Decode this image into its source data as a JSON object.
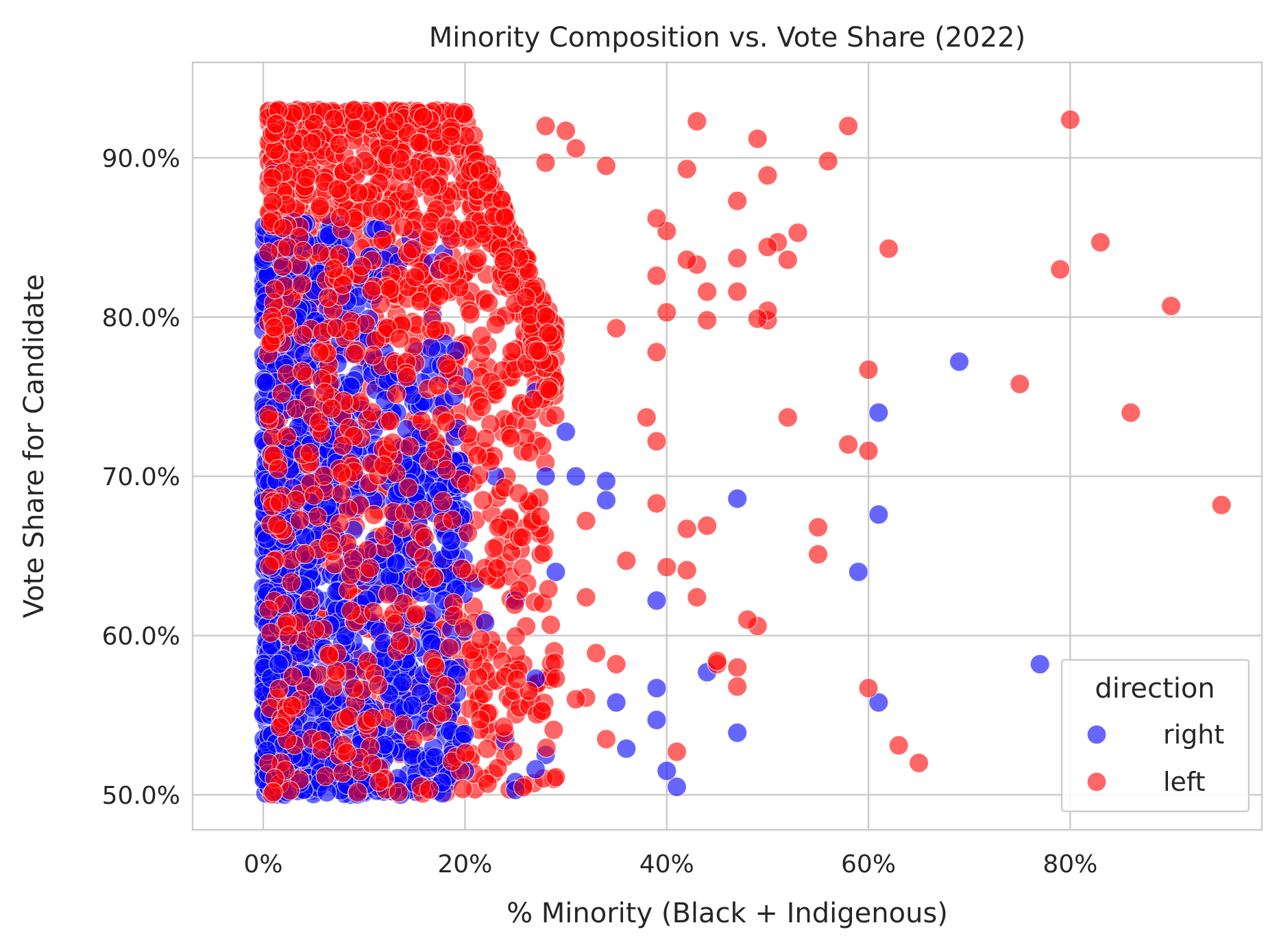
{
  "chart_data": {
    "type": "scatter",
    "title": "Minority Composition vs. Vote Share (2022)",
    "xlabel": "% Minority (Black + Indigenous)",
    "ylabel": "Vote Share for Candidate",
    "xlim": [
      -0.07,
      0.99
    ],
    "ylim": [
      0.478,
      0.96
    ],
    "x_ticks": [
      0,
      0.2,
      0.4,
      0.6,
      0.8
    ],
    "x_tick_labels": [
      "0%",
      "20%",
      "40%",
      "60%",
      "80%"
    ],
    "y_ticks": [
      0.5,
      0.6,
      0.7,
      0.8,
      0.9
    ],
    "y_tick_labels": [
      "50.0%",
      "60.0%",
      "70.0%",
      "80.0%",
      "90.0%"
    ],
    "grid": true,
    "legend": {
      "title": "direction",
      "placement": "bottom-right"
    },
    "series": [
      {
        "name": "right",
        "color": "#0000ff",
        "alpha": 0.6,
        "points": [
          [
            0.69,
            0.772
          ],
          [
            0.61,
            0.74
          ],
          [
            0.47,
            0.686
          ],
          [
            0.61,
            0.676
          ],
          [
            0.59,
            0.64
          ],
          [
            0.77,
            0.582
          ],
          [
            0.61,
            0.558
          ],
          [
            0.47,
            0.539
          ],
          [
            0.39,
            0.622
          ],
          [
            0.39,
            0.567
          ],
          [
            0.39,
            0.547
          ],
          [
            0.44,
            0.577
          ],
          [
            0.41,
            0.505
          ],
          [
            0.4,
            0.515
          ],
          [
            0.36,
            0.529
          ],
          [
            0.35,
            0.558
          ],
          [
            0.34,
            0.697
          ],
          [
            0.34,
            0.685
          ],
          [
            0.31,
            0.7
          ],
          [
            0.3,
            0.728
          ],
          [
            0.29,
            0.64
          ],
          [
            0.28,
            0.7
          ],
          [
            0.27,
            0.753
          ],
          [
            0.27,
            0.573
          ],
          [
            0.28,
            0.525
          ],
          [
            0.27,
            0.516
          ],
          [
            0.25,
            0.508
          ],
          [
            0.25,
            0.503
          ],
          [
            0.24,
            0.534
          ],
          [
            0.25,
            0.622
          ],
          [
            0.23,
            0.7
          ],
          [
            0.22,
            0.608
          ],
          [
            0.21,
            0.633
          ],
          [
            0.2,
            0.515
          ],
          [
            0.01,
            0.891
          ],
          [
            0.01,
            0.849
          ],
          [
            0.0,
            0.836
          ],
          [
            0.02,
            0.822
          ],
          [
            0.03,
            0.843
          ],
          [
            0.01,
            0.803
          ]
        ],
        "cloud": {
          "x_range": [
            0.0,
            0.2
          ],
          "y_range": [
            0.5,
            0.86
          ],
          "count": 1300,
          "density_bias": "left-low"
        }
      },
      {
        "name": "left",
        "color": "#ff0000",
        "alpha": 0.6,
        "points": [
          [
            0.95,
            0.682
          ],
          [
            0.9,
            0.807
          ],
          [
            0.86,
            0.74
          ],
          [
            0.83,
            0.847
          ],
          [
            0.8,
            0.924
          ],
          [
            0.79,
            0.83
          ],
          [
            0.75,
            0.758
          ],
          [
            0.62,
            0.843
          ],
          [
            0.6,
            0.767
          ],
          [
            0.6,
            0.716
          ],
          [
            0.58,
            0.72
          ],
          [
            0.58,
            0.92
          ],
          [
            0.56,
            0.898
          ],
          [
            0.55,
            0.668
          ],
          [
            0.55,
            0.651
          ],
          [
            0.6,
            0.567
          ],
          [
            0.63,
            0.531
          ],
          [
            0.65,
            0.52
          ],
          [
            0.52,
            0.737
          ],
          [
            0.53,
            0.853
          ],
          [
            0.52,
            0.836
          ],
          [
            0.51,
            0.847
          ],
          [
            0.5,
            0.844
          ],
          [
            0.5,
            0.889
          ],
          [
            0.49,
            0.912
          ],
          [
            0.5,
            0.798
          ],
          [
            0.5,
            0.804
          ],
          [
            0.49,
            0.799
          ],
          [
            0.49,
            0.606
          ],
          [
            0.48,
            0.61
          ],
          [
            0.47,
            0.873
          ],
          [
            0.47,
            0.837
          ],
          [
            0.47,
            0.816
          ],
          [
            0.47,
            0.58
          ],
          [
            0.47,
            0.568
          ],
          [
            0.45,
            0.582
          ],
          [
            0.45,
            0.584
          ],
          [
            0.44,
            0.669
          ],
          [
            0.44,
            0.816
          ],
          [
            0.44,
            0.798
          ],
          [
            0.43,
            0.923
          ],
          [
            0.43,
            0.833
          ],
          [
            0.42,
            0.893
          ],
          [
            0.42,
            0.836
          ],
          [
            0.43,
            0.624
          ],
          [
            0.42,
            0.667
          ],
          [
            0.42,
            0.641
          ],
          [
            0.41,
            0.527
          ],
          [
            0.4,
            0.854
          ],
          [
            0.4,
            0.803
          ],
          [
            0.39,
            0.862
          ],
          [
            0.39,
            0.826
          ],
          [
            0.39,
            0.778
          ],
          [
            0.39,
            0.683
          ],
          [
            0.39,
            0.722
          ],
          [
            0.4,
            0.643
          ],
          [
            0.38,
            0.737
          ],
          [
            0.36,
            0.647
          ],
          [
            0.35,
            0.793
          ],
          [
            0.35,
            0.582
          ],
          [
            0.34,
            0.895
          ],
          [
            0.34,
            0.535
          ],
          [
            0.33,
            0.589
          ],
          [
            0.32,
            0.561
          ],
          [
            0.31,
            0.906
          ],
          [
            0.3,
            0.917
          ],
          [
            0.28,
            0.92
          ],
          [
            0.28,
            0.897
          ],
          [
            0.29,
            0.573
          ],
          [
            0.29,
            0.511
          ],
          [
            0.32,
            0.672
          ],
          [
            0.32,
            0.624
          ],
          [
            0.31,
            0.56
          ]
        ],
        "cloud": {
          "x_range": [
            0.005,
            0.29
          ],
          "y_range": [
            0.5,
            0.93
          ],
          "count": 1700,
          "density_bias": "left-high"
        }
      }
    ]
  }
}
